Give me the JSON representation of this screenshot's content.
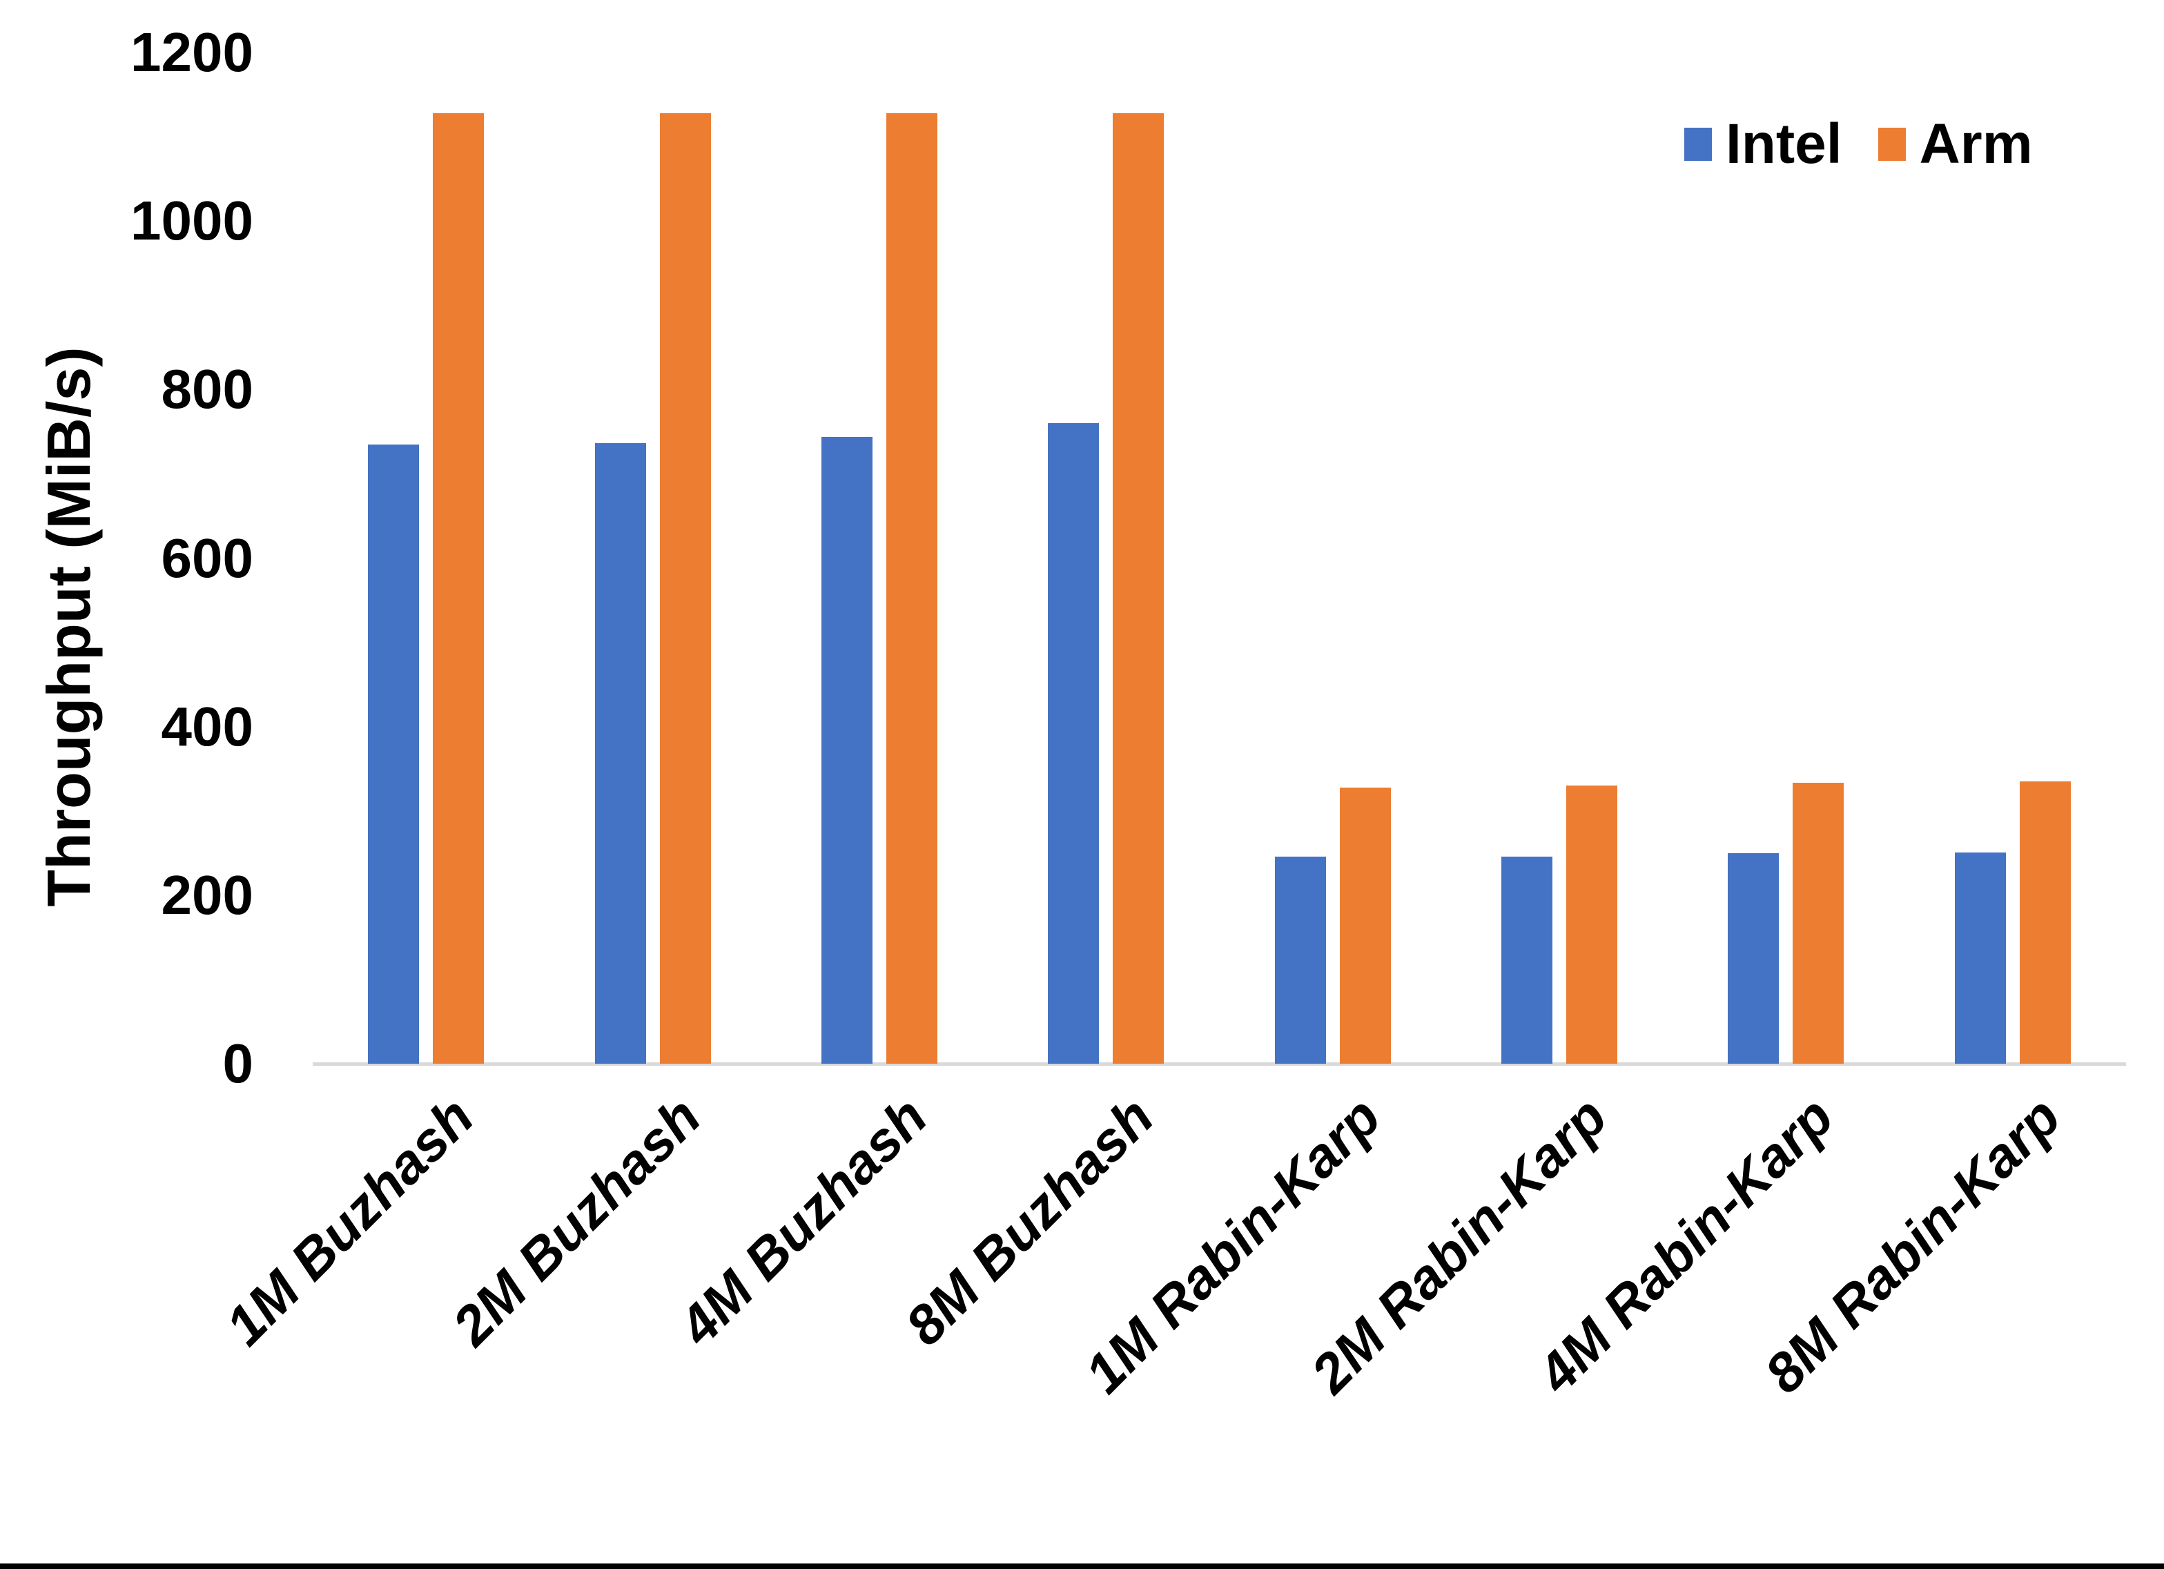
{
  "chart_data": {
    "type": "bar",
    "title": "",
    "ylabel": "Throughput (MiB/s)",
    "xlabel": "",
    "categories": [
      "1M Buzhash",
      "2M Buzhash",
      "4M Buzhash",
      "8M Buzhash",
      "1M Rabin-Karp",
      "2M Rabin-Karp",
      "4M Rabin-Karp",
      "8M Rabin-Karp"
    ],
    "series": [
      {
        "name": "Intel",
        "color": "#4472C4",
        "values": [
          735,
          736,
          744,
          760,
          246,
          246,
          250,
          251
        ]
      },
      {
        "name": "Arm",
        "color": "#ED7D31",
        "values": [
          1128,
          1128,
          1128,
          1128,
          328,
          330,
          333,
          335
        ]
      }
    ],
    "ylim": [
      0,
      1200
    ],
    "yticks": [
      0,
      200,
      400,
      600,
      800,
      1000,
      1200
    ],
    "grid": false,
    "legend_position": "top-right",
    "axis_line_color": "#D9D9D9",
    "background_color": "#FFFFFF",
    "bottom_border_color": "#000000"
  }
}
